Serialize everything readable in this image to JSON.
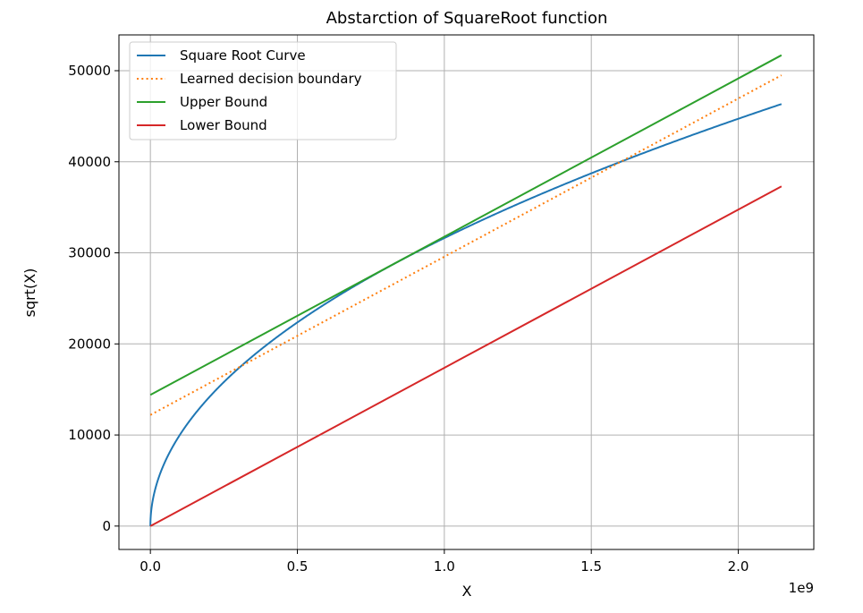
{
  "chart_data": {
    "type": "line",
    "title": "Abstarction of SquareRoot function",
    "xlabel": "X",
    "ylabel": "sqrt(X)",
    "x_offset_label": "1e9",
    "xlim": [
      -0.107,
      2.257
    ],
    "ylim": [
      -2570,
      53930
    ],
    "x_ticks": [
      0.0,
      0.5,
      1.0,
      1.5,
      2.0
    ],
    "x_tick_labels": [
      "0.0",
      "0.5",
      "1.0",
      "1.5",
      "2.0"
    ],
    "y_ticks": [
      0,
      10000,
      20000,
      30000,
      40000,
      50000
    ],
    "y_tick_labels": [
      "0",
      "10000",
      "20000",
      "30000",
      "40000",
      "50000"
    ],
    "grid": true,
    "legend_position": "upper-left",
    "series": [
      {
        "name": "Square Root Curve",
        "color": "#1f77b4",
        "style": "solid",
        "function": "sqrt",
        "x_range": [
          0,
          2.147
        ],
        "points": [
          [
            0.0,
            0
          ],
          [
            0.01,
            3162
          ],
          [
            0.05,
            7071
          ],
          [
            0.1,
            10000
          ],
          [
            0.25,
            15811
          ],
          [
            0.5,
            22361
          ],
          [
            0.75,
            27386
          ],
          [
            1.0,
            31623
          ],
          [
            1.25,
            35355
          ],
          [
            1.5,
            38730
          ],
          [
            1.75,
            41833
          ],
          [
            2.0,
            44721
          ],
          [
            2.147,
            46337
          ]
        ]
      },
      {
        "name": "Learned decision boundary",
        "color": "#ff7f0e",
        "style": "dotted",
        "points": [
          [
            0.0,
            12200
          ],
          [
            2.147,
            49500
          ]
        ]
      },
      {
        "name": "Upper Bound",
        "color": "#2ca02c",
        "style": "solid",
        "points": [
          [
            0.0,
            14400
          ],
          [
            2.147,
            51700
          ]
        ]
      },
      {
        "name": "Lower Bound",
        "color": "#d62728",
        "style": "solid",
        "points": [
          [
            0.0,
            0
          ],
          [
            2.147,
            37300
          ]
        ]
      }
    ]
  }
}
